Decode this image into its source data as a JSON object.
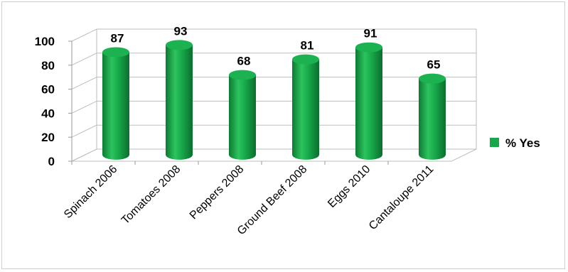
{
  "chart_data": {
    "type": "bar",
    "categories": [
      "Spinach 2006",
      "Tomatoes 2008",
      "Peppers 2008",
      "Ground Beef 2008",
      "Eggs 2010",
      "Cantaloupe 2011"
    ],
    "series": [
      {
        "name": "% Yes",
        "values": [
          87,
          93,
          68,
          81,
          91,
          65
        ],
        "color": "#17a84a"
      }
    ],
    "y_ticks": [
      "0",
      "20",
      "40",
      "60",
      "80",
      "100"
    ],
    "ylim": [
      0,
      100
    ],
    "grid": true,
    "legend_position": "right",
    "bar_style": "3d-cylinder"
  }
}
